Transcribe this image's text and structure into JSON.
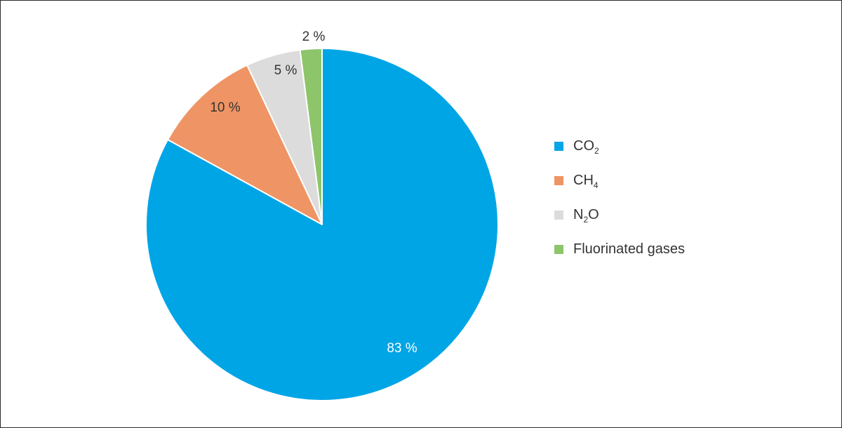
{
  "chart_data": {
    "type": "pie",
    "title": "",
    "slices": [
      {
        "name": "Fluorinated gases",
        "label_main": "Fluorinated gases",
        "label_sub": "",
        "label_tail": "",
        "value": 2,
        "value_label": "2 %",
        "color": "#8dc56a"
      },
      {
        "name": "N2O",
        "label_main": "N",
        "label_sub": "2",
        "label_tail": "O",
        "value": 5,
        "value_label": "5 %",
        "color": "#dcdcdc"
      },
      {
        "name": "CH4",
        "label_main": "CH",
        "label_sub": "4",
        "label_tail": "",
        "value": 10,
        "value_label": "10 %",
        "color": "#ef9464"
      },
      {
        "name": "CO2",
        "label_main": "CO",
        "label_sub": "2",
        "label_tail": "",
        "value": 83,
        "value_label": "83 %",
        "color": "#00a5e6"
      }
    ],
    "legend": {
      "placement": "right",
      "order": [
        "CO2",
        "CH4",
        "N2O",
        "Fluorinated gases"
      ]
    },
    "start_angle": "12 o'clock",
    "direction": "counterclockwise"
  }
}
